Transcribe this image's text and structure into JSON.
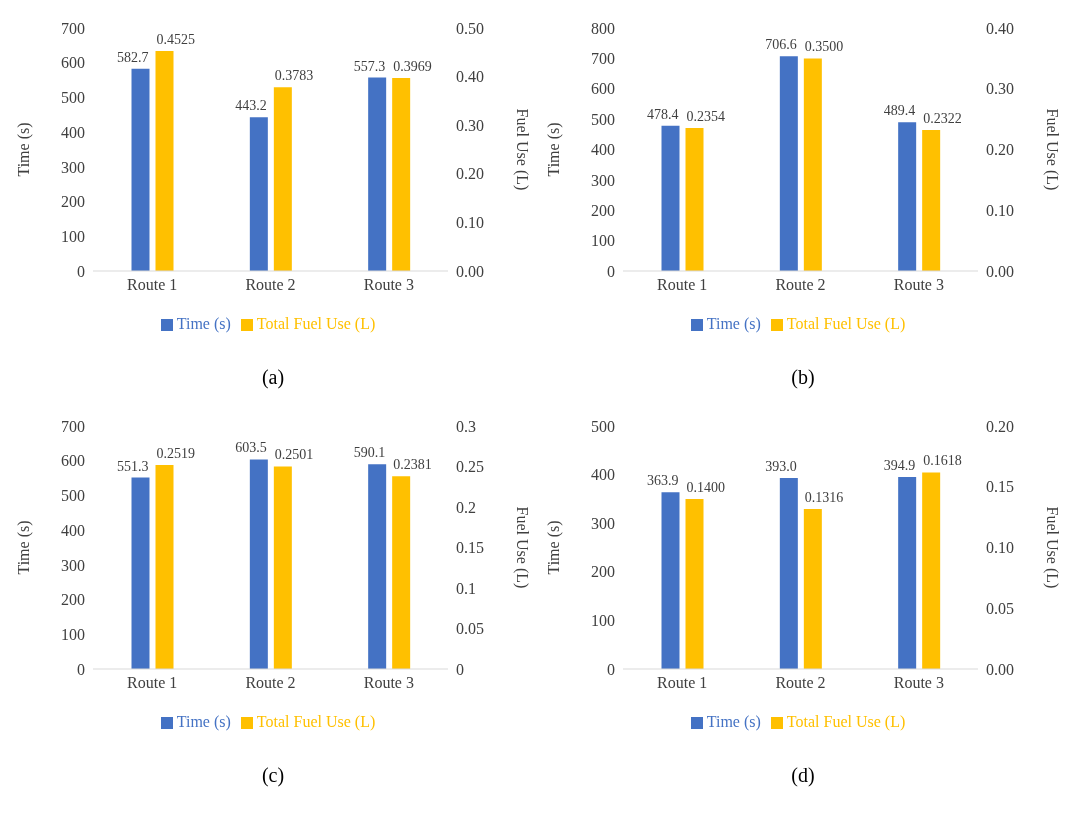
{
  "chart_data": [
    {
      "type": "bar",
      "categories": [
        "Route 1",
        "Route 2",
        "Route 3"
      ],
      "ylabel": "Time (s)",
      "y2label": "Fuel Use (L)",
      "ylim": [
        0,
        700
      ],
      "yticks": [
        0,
        100,
        200,
        300,
        400,
        500,
        600,
        700
      ],
      "y2lim": [
        0,
        0.5
      ],
      "y2ticks": [
        {
          "value": 0,
          "label": "0.00"
        },
        {
          "value": 0.1,
          "label": "0.10"
        },
        {
          "value": 0.2,
          "label": "0.20"
        },
        {
          "value": 0.3,
          "label": "0.30"
        },
        {
          "value": 0.4,
          "label": "0.40"
        },
        {
          "value": 0.5,
          "label": "0.50"
        }
      ],
      "legend": "bottom",
      "annotations": [
        "(a)"
      ],
      "series": [
        {
          "name": "Time (s)",
          "color": "#4472c4",
          "values": [
            582.7,
            443.2,
            557.3
          ],
          "value_labels": [
            "582.7",
            "443.2",
            "557.3"
          ]
        },
        {
          "name": "Total Fuel Use (L)",
          "color": "#ffc000",
          "axis": "y2",
          "values": [
            0.4525,
            0.3783,
            0.3969
          ],
          "value_labels": [
            "0.4525",
            "0.3783",
            "0.3969"
          ]
        }
      ]
    },
    {
      "type": "bar",
      "categories": [
        "Route 1",
        "Route 2",
        "Route 3"
      ],
      "ylabel": "Time (s)",
      "y2label": "Fuel Use (L)",
      "ylim": [
        0,
        800
      ],
      "yticks": [
        0,
        100,
        200,
        300,
        400,
        500,
        600,
        700,
        800
      ],
      "y2lim": [
        0,
        0.4
      ],
      "y2ticks": [
        {
          "value": 0,
          "label": "0.00"
        },
        {
          "value": 0.1,
          "label": "0.10"
        },
        {
          "value": 0.2,
          "label": "0.20"
        },
        {
          "value": 0.3,
          "label": "0.30"
        },
        {
          "value": 0.4,
          "label": "0.40"
        }
      ],
      "legend": "bottom",
      "annotations": [
        "(b)"
      ],
      "series": [
        {
          "name": "Time (s)",
          "color": "#4472c4",
          "values": [
            478.4,
            706.6,
            489.4
          ],
          "value_labels": [
            "478.4",
            "706.6",
            "489.4"
          ]
        },
        {
          "name": "Total Fuel Use (L)",
          "color": "#ffc000",
          "axis": "y2",
          "values": [
            0.2354,
            0.35,
            0.2322
          ],
          "value_labels": [
            "0.2354",
            "0.3500",
            "0.2322"
          ]
        }
      ]
    },
    {
      "type": "bar",
      "categories": [
        "Route 1",
        "Route 2",
        "Route 3"
      ],
      "ylabel": "Time (s)",
      "y2label": "Fuel Use (L)",
      "ylim": [
        0,
        700
      ],
      "yticks": [
        0,
        100,
        200,
        300,
        400,
        500,
        600,
        700
      ],
      "y2lim": [
        0,
        0.3
      ],
      "y2ticks": [
        0,
        0.05,
        0.1,
        0.15,
        0.2,
        0.25,
        0.3
      ],
      "legend": "bottom",
      "annotations": [
        "(c)"
      ],
      "series": [
        {
          "name": "Time (s)",
          "color": "#4472c4",
          "values": [
            551.3,
            603.5,
            590.1
          ],
          "value_labels": [
            "551.3",
            "603.5",
            "590.1"
          ]
        },
        {
          "name": "Total Fuel Use (L)",
          "color": "#ffc000",
          "axis": "y2",
          "values": [
            0.2519,
            0.2501,
            0.2381
          ],
          "value_labels": [
            "0.2519",
            "0.2501",
            "0.2381"
          ]
        }
      ]
    },
    {
      "type": "bar",
      "categories": [
        "Route 1",
        "Route 2",
        "Route 3"
      ],
      "ylabel": "Time (s)",
      "y2label": "Fuel Use (L)",
      "ylim": [
        0,
        500
      ],
      "yticks": [
        0,
        100,
        200,
        300,
        400,
        500
      ],
      "y2lim": [
        0,
        0.2
      ],
      "y2ticks": [
        {
          "value": 0,
          "label": "0.00"
        },
        {
          "value": 0.05,
          "label": "0.05"
        },
        {
          "value": 0.1,
          "label": "0.10"
        },
        {
          "value": 0.15,
          "label": "0.15"
        },
        {
          "value": 0.2,
          "label": "0.20"
        }
      ],
      "legend": "bottom",
      "annotations": [
        "(d)"
      ],
      "series": [
        {
          "name": "Time (s)",
          "color": "#4472c4",
          "values": [
            363.9,
            393,
            394.9
          ],
          "value_labels": [
            "363.9",
            "393.0",
            "394.9"
          ]
        },
        {
          "name": "Total Fuel Use (L)",
          "color": "#ffc000",
          "axis": "y2",
          "values": [
            0.14,
            0.1316,
            0.1618
          ],
          "value_labels": [
            "0.1400",
            "0.1316",
            "0.1618"
          ]
        }
      ]
    }
  ]
}
